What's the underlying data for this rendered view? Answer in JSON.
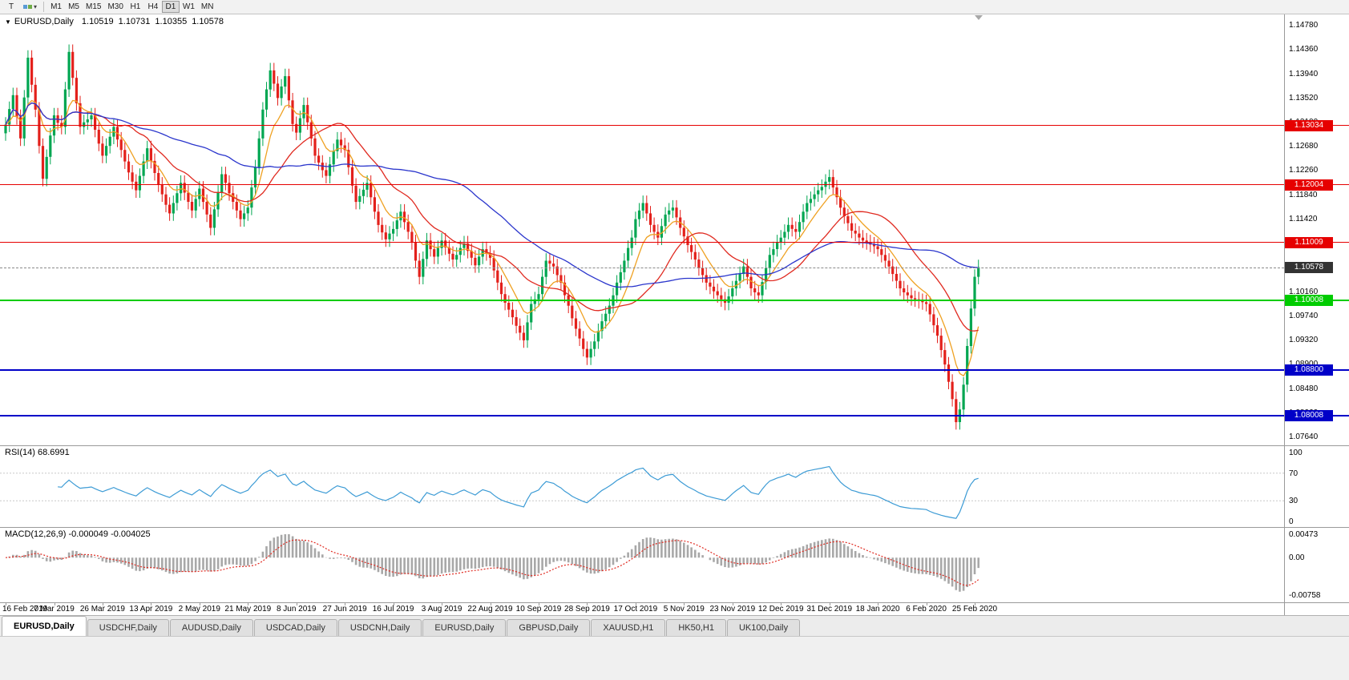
{
  "icons": {
    "caret_down": "▾",
    "triangle_down": "▼"
  },
  "toolbar": {
    "text_tool_label": "T",
    "timeframes": [
      "M1",
      "M5",
      "M15",
      "M30",
      "H1",
      "H4",
      "D1",
      "W1",
      "MN"
    ],
    "active_timeframe": "D1"
  },
  "chart": {
    "symbol_period": "EURUSD,Daily",
    "open": "1.10519",
    "high": "1.10731",
    "low": "1.10355",
    "close": "1.10578"
  },
  "chart_data": {
    "type": "candlestick",
    "symbol": "EURUSD",
    "timeframe": "Daily",
    "x_label_every": 13,
    "x_labels": [
      "16 Feb 2019",
      "7 Mar 2019",
      "26 Mar 2019",
      "13 Apr 2019",
      "2 May 2019",
      "21 May 2019",
      "8 Jun 2019",
      "27 Jun 2019",
      "16 Jul 2019",
      "3 Aug 2019",
      "22 Aug 2019",
      "10 Sep 2019",
      "28 Sep 2019",
      "17 Oct 2019",
      "5 Nov 2019",
      "23 Nov 2019",
      "12 Dec 2019",
      "31 Dec 2019",
      "18 Jan 2020",
      "6 Feb 2020",
      "25 Feb 2020"
    ],
    "y_axis": {
      "labels": [
        "1.14780",
        "1.14360",
        "1.13940",
        "1.13520",
        "1.13100",
        "1.12680",
        "1.12260",
        "1.11840",
        "1.11420",
        "1.11000",
        "1.10580",
        "1.10160",
        "1.09740",
        "1.09320",
        "1.08900",
        "1.08480",
        "1.08060",
        "1.07640"
      ]
    },
    "closes": [
      1.1305,
      1.1332,
      1.1356,
      1.1318,
      1.1281,
      1.1352,
      1.1421,
      1.1374,
      1.1331,
      1.1268,
      1.1211,
      1.1249,
      1.1286,
      1.1321,
      1.1308,
      1.1301,
      1.1366,
      1.1431,
      1.1386,
      1.1342,
      1.1301,
      1.1309,
      1.1314,
      1.1321,
      1.1296,
      1.1272,
      1.1251,
      1.1268,
      1.1284,
      1.1301,
      1.1279,
      1.1261,
      1.1241,
      1.1222,
      1.1206,
      1.1191,
      1.1216,
      1.1241,
      1.1264,
      1.1242,
      1.1221,
      1.1201,
      1.1184,
      1.1166,
      1.1151,
      1.1169,
      1.1186,
      1.1204,
      1.1187,
      1.1171,
      1.1156,
      1.1176,
      1.1194,
      1.1171,
      1.1149,
      1.1126,
      1.1158,
      1.1187,
      1.1219,
      1.1204,
      1.1186,
      1.1171,
      1.1156,
      1.1141,
      1.1151,
      1.1161,
      1.1196,
      1.1231,
      1.1281,
      1.1331,
      1.1366,
      1.1399,
      1.1376,
      1.1351,
      1.1371,
      1.1389,
      1.1347,
      1.1306,
      1.1291,
      1.1316,
      1.1339,
      1.1309,
      1.1281,
      1.1251,
      1.1239,
      1.1226,
      1.1216,
      1.1236,
      1.1259,
      1.1279,
      1.1269,
      1.1261,
      1.1231,
      1.1199,
      1.1171,
      1.1181,
      1.1192,
      1.1204,
      1.1179,
      1.1154,
      1.1131,
      1.1118,
      1.1106,
      1.1116,
      1.1124,
      1.1139,
      1.1154,
      1.1136,
      1.1119,
      1.1101,
      1.1069,
      1.1041,
      1.1072,
      1.1104,
      1.1089,
      1.1076,
      1.1091,
      1.1104,
      1.1092,
      1.1081,
      1.1071,
      1.1079,
      1.1091,
      1.1099,
      1.1086,
      1.1074,
      1.1061,
      1.1076,
      1.1089,
      1.1082,
      1.1074,
      1.1052,
      1.1031,
      1.1011,
      1.0996,
      1.0984,
      1.0971,
      1.0956,
      1.0944,
      1.0931,
      1.0962,
      1.0994,
      1.1002,
      1.1011,
      1.1041,
      1.1069,
      1.1064,
      1.1059,
      1.1044,
      1.1031,
      1.1009,
      1.0991,
      1.0969,
      1.0951,
      1.0934,
      1.0916,
      1.0901,
      1.0916,
      1.0929,
      1.0947,
      1.0964,
      1.0977,
      1.0991,
      1.1009,
      1.1031,
      1.1049,
      1.1069,
      1.1091,
      1.1109,
      1.1141,
      1.1156,
      1.1169,
      1.1151,
      1.1131,
      1.1119,
      1.1109,
      1.1129,
      1.1149,
      1.1156,
      1.1161,
      1.1144,
      1.1126,
      1.1111,
      1.1096,
      1.1084,
      1.1071,
      1.1056,
      1.1044,
      1.1031,
      1.1024,
      1.1016,
      1.1009,
      1.1002,
      1.0996,
      1.1007,
      1.1021,
      1.1034,
      1.1046,
      1.1059,
      1.1041,
      1.1021,
      1.1014,
      1.1009,
      1.1032,
      1.1056,
      1.1079,
      1.1089,
      1.1101,
      1.1109,
      1.1119,
      1.1131,
      1.1124,
      1.1119,
      1.1136,
      1.1154,
      1.1169,
      1.1176,
      1.1184,
      1.1191,
      1.1197,
      1.1206,
      1.1214,
      1.1196,
      1.1179,
      1.1161,
      1.1146,
      1.1134,
      1.1121,
      1.1116,
      1.1109,
      1.1104,
      1.1101,
      1.1097,
      1.1094,
      1.1089,
      1.1079,
      1.1069,
      1.1059,
      1.1046,
      1.1034,
      1.1021,
      1.1014,
      1.1009,
      1.1004,
      1.1002,
      1.0999,
      1.0997,
      1.0994,
      1.0976,
      1.0957,
      1.0939,
      1.0914,
      1.0889,
      1.0859,
      1.0829,
      1.0789,
      1.0811,
      1.0854,
      1.0921,
      1.0986,
      1.1041,
      1.10578
    ],
    "hlines": [
      {
        "label": "1.13034",
        "value": 1.13034,
        "color_key": "hline_red",
        "width": 1
      },
      {
        "label": "1.12004",
        "value": 1.12004,
        "color_key": "hline_red",
        "width": 1
      },
      {
        "label": "1.11009",
        "value": 1.11009,
        "color_key": "hline_red",
        "width": 1
      },
      {
        "label": "1.10008",
        "value": 1.10008,
        "color_key": "hline_green",
        "width": 2
      },
      {
        "label": "1.08800",
        "value": 1.088,
        "color_key": "hline_blue",
        "width": 2
      },
      {
        "label": "1.08008",
        "value": 1.08008,
        "color_key": "hline_blue",
        "width": 2
      }
    ],
    "current_price": {
      "label": "1.10578",
      "value": 1.10578
    },
    "moving_averages": [
      {
        "method": "ema",
        "period": 9,
        "color_key": "ma_fast"
      },
      {
        "method": "sma",
        "period": 22,
        "color_key": "ma_mid"
      },
      {
        "method": "sma",
        "period": 55,
        "color_key": "ma_slow"
      }
    ],
    "rsi": {
      "label": "RSI(14) 68.6991",
      "period": 14,
      "axis_labels": [
        "100",
        "70",
        "30",
        "0"
      ],
      "levels": [
        70,
        30
      ]
    },
    "macd": {
      "label": "MACD(12,26,9) -0.000049 -0.004025",
      "fast": 12,
      "slow": 26,
      "signal_period": 9,
      "top": 0.00473,
      "bottom": -0.00758,
      "axis_labels": [
        {
          "text": "0.00473",
          "value": 0.00473
        },
        {
          "text": "0.00",
          "value": 0
        },
        {
          "text": "-0.00758",
          "value": -0.00758
        }
      ]
    },
    "colors": {
      "up": "#00a651",
      "down": "#e3201b",
      "ma_fast": "#efa122",
      "ma_mid": "#e02a20",
      "ma_slow": "#2a35cc",
      "rsi": "#3c9bd5",
      "macd_hist": "#a8a8a8",
      "macd_signal": "#e02a20",
      "hline_red": "#e60000",
      "hline_green": "#00cc00",
      "hline_blue": "#0000c8",
      "current": "#333333"
    }
  },
  "tabs": [
    {
      "label": "EURUSD,Daily",
      "active": true
    },
    {
      "label": "USDCHF,Daily",
      "active": false
    },
    {
      "label": "AUDUSD,Daily",
      "active": false
    },
    {
      "label": "USDCAD,Daily",
      "active": false
    },
    {
      "label": "USDCNH,Daily",
      "active": false
    },
    {
      "label": "EURUSD,Daily",
      "active": false
    },
    {
      "label": "GBPUSD,Daily",
      "active": false
    },
    {
      "label": "XAUUSD,H1",
      "active": false
    },
    {
      "label": "HK50,H1",
      "active": false
    },
    {
      "label": "UK100,Daily",
      "active": false
    }
  ]
}
